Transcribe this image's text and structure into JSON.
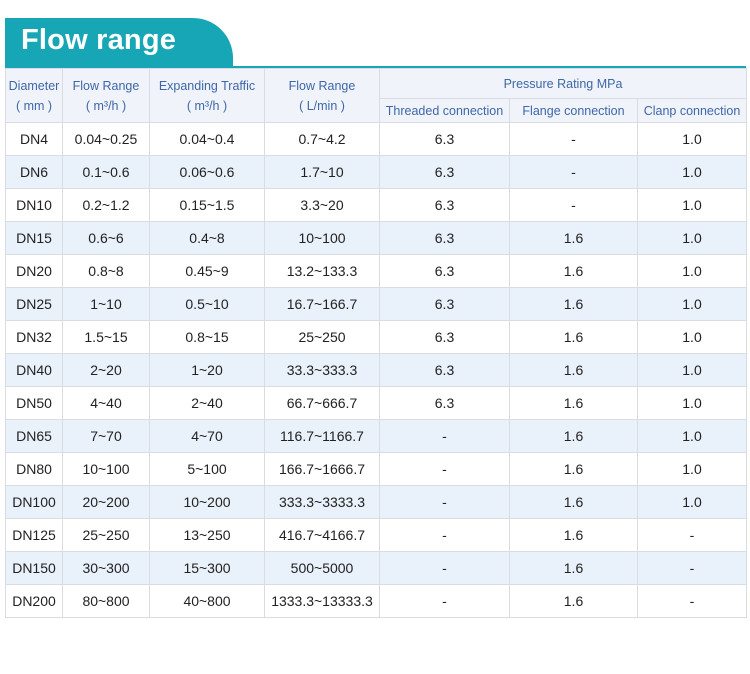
{
  "title": "Flow range",
  "header": {
    "diameter": [
      "Diameter",
      "( mm )"
    ],
    "flow_range": [
      "Flow Range",
      "( m³/h )"
    ],
    "expanding": [
      "Expanding Traffic",
      "( m³/h )"
    ],
    "flow_lmin": [
      "Flow Range",
      "( L/min )"
    ],
    "pressure": "Pressure Rating MPa",
    "threaded": "Threaded connection",
    "flange": "Flange connection",
    "clamp": "Clanp connection"
  },
  "rows": [
    [
      "DN4",
      "0.04~0.25",
      "0.04~0.4",
      "0.7~4.2",
      "6.3",
      "-",
      "1.0"
    ],
    [
      "DN6",
      "0.1~0.6",
      "0.06~0.6",
      "1.7~10",
      "6.3",
      "-",
      "1.0"
    ],
    [
      "DN10",
      "0.2~1.2",
      "0.15~1.5",
      "3.3~20",
      "6.3",
      "-",
      "1.0"
    ],
    [
      "DN15",
      "0.6~6",
      "0.4~8",
      "10~100",
      "6.3",
      "1.6",
      "1.0"
    ],
    [
      "DN20",
      "0.8~8",
      "0.45~9",
      "13.2~133.3",
      "6.3",
      "1.6",
      "1.0"
    ],
    [
      "DN25",
      "1~10",
      "0.5~10",
      "16.7~166.7",
      "6.3",
      "1.6",
      "1.0"
    ],
    [
      "DN32",
      "1.5~15",
      "0.8~15",
      "25~250",
      "6.3",
      "1.6",
      "1.0"
    ],
    [
      "DN40",
      "2~20",
      "1~20",
      "33.3~333.3",
      "6.3",
      "1.6",
      "1.0"
    ],
    [
      "DN50",
      "4~40",
      "2~40",
      "66.7~666.7",
      "6.3",
      "1.6",
      "1.0"
    ],
    [
      "DN65",
      "7~70",
      "4~70",
      "116.7~1166.7",
      "-",
      "1.6",
      "1.0"
    ],
    [
      "DN80",
      "10~100",
      "5~100",
      "166.7~1666.7",
      "-",
      "1.6",
      "1.0"
    ],
    [
      "DN100",
      "20~200",
      "10~200",
      "333.3~3333.3",
      "-",
      "1.6",
      "1.0"
    ],
    [
      "DN125",
      "25~250",
      "13~250",
      "416.7~4166.7",
      "-",
      "1.6",
      "-"
    ],
    [
      "DN150",
      "30~300",
      "15~300",
      "500~5000",
      "-",
      "1.6",
      "-"
    ],
    [
      "DN200",
      "80~800",
      "40~800",
      "1333.3~13333.3",
      "-",
      "1.6",
      "-"
    ]
  ],
  "colors": {
    "accent": "#17a6b5",
    "header_text": "#3e66a8",
    "stripe": "#e9f1fb"
  }
}
